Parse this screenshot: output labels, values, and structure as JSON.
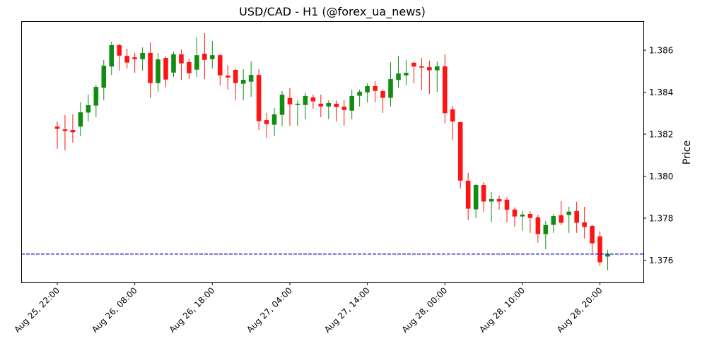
{
  "chart_data": {
    "type": "candlestick",
    "title": "USD/CAD - H1 (@forex_ua_news)",
    "xlabel": "",
    "ylabel": "Price",
    "ylim": [
      1.37494,
      1.38738
    ],
    "xlim": [
      -4.65,
      75.6
    ],
    "grid": false,
    "colors": {
      "up": "#128c12",
      "down": "#ff1414",
      "last_price_line": "#1a1acc"
    },
    "yticks": [
      1.376,
      1.378,
      1.38,
      1.382,
      1.384,
      1.386
    ],
    "ytick_labels": [
      "1.376",
      "1.378",
      "1.380",
      "1.382",
      "1.384",
      "1.386"
    ],
    "xticks": [
      {
        "index": 0,
        "label": "Aug 25, 22:00"
      },
      {
        "index": 10,
        "label": "Aug 26, 08:00"
      },
      {
        "index": 20,
        "label": "Aug 26, 18:00"
      },
      {
        "index": 30,
        "label": "Aug 27, 04:00"
      },
      {
        "index": 40,
        "label": "Aug 27, 14:00"
      },
      {
        "index": 50,
        "label": "Aug 28, 00:00"
      },
      {
        "index": 60,
        "label": "Aug 28, 10:00"
      },
      {
        "index": 70,
        "label": "Aug 28, 20:00"
      }
    ],
    "last_price": 1.37629,
    "ohlc": [
      [
        1.38236,
        1.38261,
        1.3813,
        1.38225
      ],
      [
        1.38223,
        1.38291,
        1.38123,
        1.38215
      ],
      [
        1.3822,
        1.38294,
        1.3816,
        1.38209
      ],
      [
        1.38236,
        1.38351,
        1.3819,
        1.38304
      ],
      [
        1.38303,
        1.38388,
        1.38261,
        1.38338
      ],
      [
        1.38336,
        1.38435,
        1.38281,
        1.38425
      ],
      [
        1.38421,
        1.38553,
        1.38361,
        1.38526
      ],
      [
        1.38522,
        1.3864,
        1.38482,
        1.38624
      ],
      [
        1.38624,
        1.3863,
        1.38503,
        1.38574
      ],
      [
        1.38573,
        1.38607,
        1.38513,
        1.38541
      ],
      [
        1.38566,
        1.38587,
        1.38492,
        1.38557
      ],
      [
        1.38557,
        1.38613,
        1.38503,
        1.38587
      ],
      [
        1.38587,
        1.38637,
        1.38372,
        1.38443
      ],
      [
        1.38443,
        1.38587,
        1.38402,
        1.38556
      ],
      [
        1.38563,
        1.3857,
        1.38422,
        1.3846
      ],
      [
        1.38493,
        1.38593,
        1.38472,
        1.3858
      ],
      [
        1.3858,
        1.38603,
        1.38459,
        1.38537
      ],
      [
        1.38543,
        1.3856,
        1.38462,
        1.3849
      ],
      [
        1.38507,
        1.3866,
        1.38472,
        1.38576
      ],
      [
        1.38583,
        1.38681,
        1.38462,
        1.38554
      ],
      [
        1.38557,
        1.38644,
        1.38513,
        1.38576
      ],
      [
        1.38576,
        1.38583,
        1.38432,
        1.3848
      ],
      [
        1.38479,
        1.38529,
        1.38412,
        1.3847
      ],
      [
        1.38506,
        1.38513,
        1.38361,
        1.38443
      ],
      [
        1.3844,
        1.38509,
        1.38361,
        1.38459
      ],
      [
        1.3845,
        1.38546,
        1.38378,
        1.38482
      ],
      [
        1.38482,
        1.38509,
        1.3822,
        1.38262
      ],
      [
        1.38267,
        1.38301,
        1.38183,
        1.38248
      ],
      [
        1.38245,
        1.38324,
        1.3819,
        1.38294
      ],
      [
        1.38292,
        1.38405,
        1.3824,
        1.38388
      ],
      [
        1.38372,
        1.38419,
        1.3824,
        1.38342
      ],
      [
        1.38339,
        1.38361,
        1.3824,
        1.38345
      ],
      [
        1.38339,
        1.38398,
        1.38271,
        1.38382
      ],
      [
        1.38375,
        1.38388,
        1.38321,
        1.38356
      ],
      [
        1.38345,
        1.38388,
        1.38281,
        1.38332
      ],
      [
        1.38332,
        1.38361,
        1.38271,
        1.38348
      ],
      [
        1.38345,
        1.38361,
        1.38261,
        1.38329
      ],
      [
        1.38331,
        1.38361,
        1.3824,
        1.38315
      ],
      [
        1.38312,
        1.38412,
        1.38271,
        1.38382
      ],
      [
        1.38383,
        1.38412,
        1.38331,
        1.38402
      ],
      [
        1.38399,
        1.38442,
        1.38351,
        1.38429
      ],
      [
        1.38429,
        1.38452,
        1.38351,
        1.38406
      ],
      [
        1.38405,
        1.38415,
        1.38301,
        1.38373
      ],
      [
        1.38373,
        1.38543,
        1.38331,
        1.38462
      ],
      [
        1.38458,
        1.38573,
        1.38422,
        1.38489
      ],
      [
        1.3848,
        1.38553,
        1.38432,
        1.38492
      ],
      [
        1.3854,
        1.38546,
        1.38442,
        1.38522
      ],
      [
        1.38523,
        1.38563,
        1.38412,
        1.38517
      ],
      [
        1.38519,
        1.3855,
        1.38392,
        1.38504
      ],
      [
        1.38504,
        1.38546,
        1.38402,
        1.38523
      ],
      [
        1.38523,
        1.3858,
        1.38251,
        1.383
      ],
      [
        1.38318,
        1.38335,
        1.38173,
        1.3826
      ],
      [
        1.38257,
        1.38261,
        1.37941,
        1.37979
      ],
      [
        1.37978,
        1.38015,
        1.3779,
        1.37845
      ],
      [
        1.37842,
        1.37962,
        1.378,
        1.37958
      ],
      [
        1.37958,
        1.37972,
        1.37831,
        1.37879
      ],
      [
        1.37879,
        1.37925,
        1.3778,
        1.37891
      ],
      [
        1.37891,
        1.37908,
        1.37841,
        1.37879
      ],
      [
        1.37888,
        1.37901,
        1.3778,
        1.3784
      ],
      [
        1.37841,
        1.37851,
        1.3776,
        1.37808
      ],
      [
        1.37808,
        1.37834,
        1.3774,
        1.37817
      ],
      [
        1.3782,
        1.37834,
        1.3773,
        1.37801
      ],
      [
        1.37804,
        1.37817,
        1.37683,
        1.37724
      ],
      [
        1.37724,
        1.37787,
        1.37652,
        1.37767
      ],
      [
        1.37768,
        1.3782,
        1.3773,
        1.3781
      ],
      [
        1.37814,
        1.37881,
        1.37767,
        1.37778
      ],
      [
        1.37815,
        1.37854,
        1.3773,
        1.37831
      ],
      [
        1.37834,
        1.37878,
        1.3773,
        1.37778
      ],
      [
        1.3778,
        1.37854,
        1.37703,
        1.37758
      ],
      [
        1.37763,
        1.37767,
        1.37632,
        1.3768
      ],
      [
        1.37713,
        1.37737,
        1.37572,
        1.3759
      ],
      [
        1.37617,
        1.37649,
        1.37552,
        1.37629
      ]
    ]
  }
}
